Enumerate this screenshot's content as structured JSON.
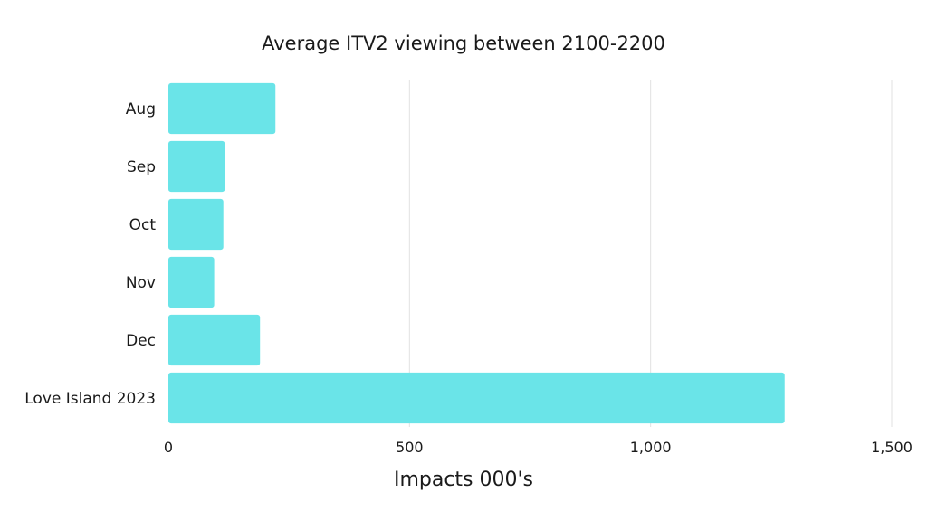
{
  "chart_data": {
    "type": "bar",
    "orientation": "horizontal",
    "title": "Average ITV2 viewing between 2100-2200",
    "xlabel": "Impacts 000's",
    "ylabel": "",
    "categories": [
      "Aug",
      "Sep",
      "Oct",
      "Nov",
      "Dec",
      "Love Island 2023"
    ],
    "values": [
      222,
      117,
      114,
      95,
      190,
      1278
    ],
    "xlim": [
      0,
      1500
    ],
    "xticks": [
      0,
      500,
      1000,
      1500
    ],
    "xtick_labels": [
      "0",
      "500",
      "1,000",
      "1,500"
    ],
    "grid": true,
    "bar_color": "#6ae4e8",
    "grid_color": "#e2e2e2"
  }
}
